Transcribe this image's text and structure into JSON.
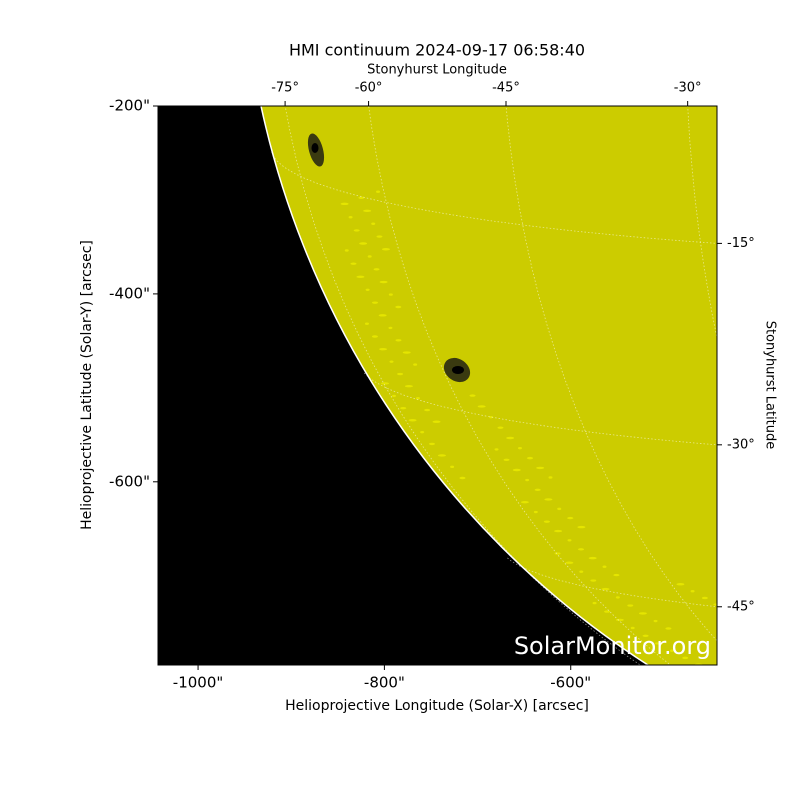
{
  "chart_data": {
    "type": "image",
    "title": "HMI continuum 2024-09-17 06:58:40",
    "x_label": "Helioprojective Longitude (Solar-X) [arcsec]",
    "y_label": "Helioprojective Latitude (Solar-Y) [arcsec]",
    "top_label": "Stonyhurst Longitude",
    "right_label": "Stonyhurst Latitude",
    "xlim": [
      -1043,
      -443
    ],
    "ylim": [
      -795,
      -200
    ],
    "xticks": [
      {
        "value": -1000,
        "label": "-1000\""
      },
      {
        "value": -800,
        "label": "-800\""
      },
      {
        "value": -600,
        "label": "-600\""
      }
    ],
    "yticks": [
      {
        "value": -200,
        "label": "-200\""
      },
      {
        "value": -400,
        "label": "-400\""
      },
      {
        "value": -600,
        "label": "-600\""
      }
    ],
    "lon_ticks": [
      {
        "value": -75,
        "label": "-75°"
      },
      {
        "value": -60,
        "label": "-60°"
      },
      {
        "value": -45,
        "label": "-45°"
      },
      {
        "value": -30,
        "label": "-30°"
      }
    ],
    "lat_ticks": [
      {
        "value": -15,
        "label": "-15°"
      },
      {
        "value": -30,
        "label": "-30°"
      },
      {
        "value": -45,
        "label": "-45°"
      }
    ],
    "disk_color": "#cccc00",
    "background_color": "#000000",
    "watermark": "SolarMonitor.org"
  }
}
